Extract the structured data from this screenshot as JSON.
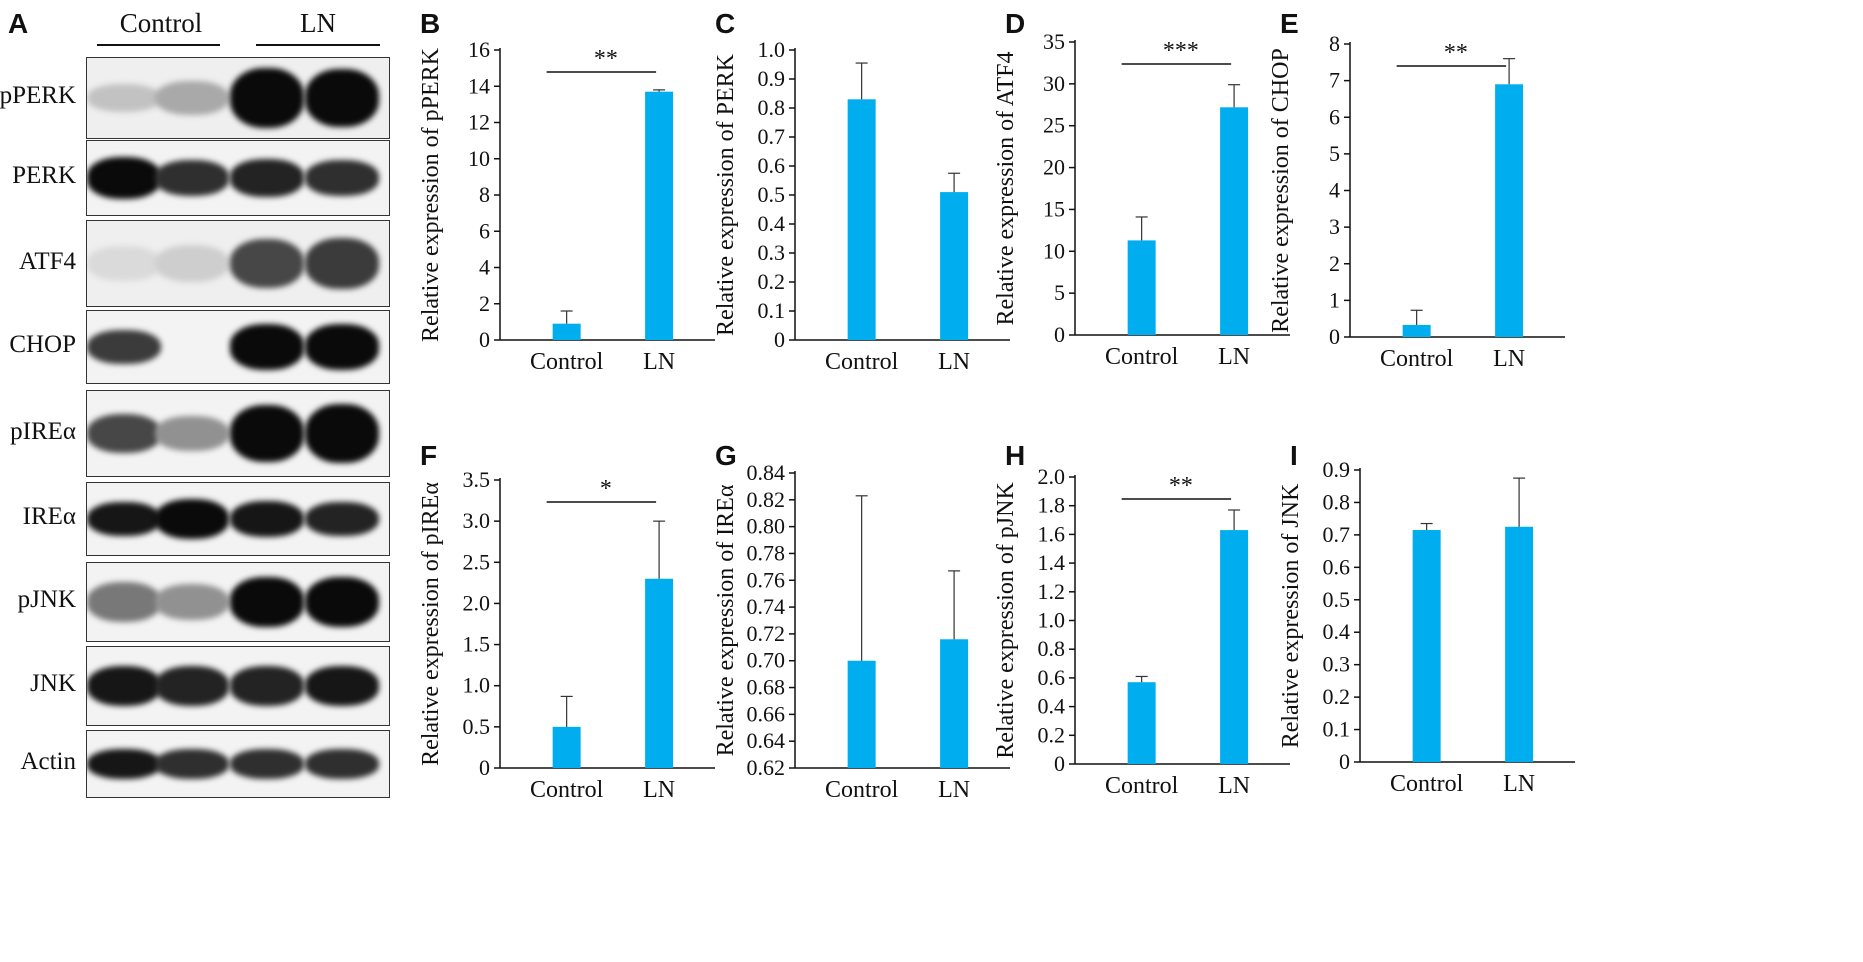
{
  "panel_a": {
    "letter": "A",
    "conditions": [
      "Control",
      "LN"
    ],
    "rows": [
      "pPERK",
      "PERK",
      "ATF4",
      "CHOP",
      "pIREα",
      "IREα",
      "pJNK",
      "JNK",
      "Actin"
    ]
  },
  "colors": {
    "bar": "#00AEEF",
    "axis": "#111111"
  },
  "chart_data": [
    {
      "letter": "B",
      "type": "bar",
      "categories": [
        "Control",
        "LN"
      ],
      "values": [
        0.9,
        13.7
      ],
      "errors": [
        0.7,
        0.1
      ],
      "ylabel": "Relative expression of pPERK",
      "ylim": [
        0,
        16
      ],
      "ticks": [
        "0",
        "2",
        "4",
        "6",
        "8",
        "10",
        "12",
        "14",
        "16"
      ],
      "significance": "**"
    },
    {
      "letter": "C",
      "type": "bar",
      "categories": [
        "Control",
        "LN"
      ],
      "values": [
        0.83,
        0.51
      ],
      "errors": [
        0.125,
        0.065
      ],
      "ylabel": "Relative expression of PERK",
      "ylim": [
        0,
        1.0
      ],
      "ticks": [
        "0",
        "0.1",
        "0.2",
        "0.3",
        "0.4",
        "0.5",
        "0.6",
        "0.7",
        "0.8",
        "0.9",
        "1.0"
      ],
      "significance": ""
    },
    {
      "letter": "D",
      "type": "bar",
      "categories": [
        "Control",
        "LN"
      ],
      "values": [
        11.3,
        27.2
      ],
      "errors": [
        2.8,
        2.7
      ],
      "ylabel": "Relative expression of ATF4",
      "ylim": [
        0,
        35
      ],
      "ticks": [
        "0",
        "5",
        "10",
        "15",
        "20",
        "25",
        "30",
        "35"
      ],
      "significance": "***"
    },
    {
      "letter": "E",
      "type": "bar",
      "categories": [
        "Control",
        "LN"
      ],
      "values": [
        0.33,
        6.9
      ],
      "errors": [
        0.4,
        0.7
      ],
      "ylabel": "Relative expression of CHOP",
      "ylim": [
        0,
        8
      ],
      "ticks": [
        "0",
        "1",
        "2",
        "3",
        "4",
        "5",
        "6",
        "7",
        "8"
      ],
      "significance": "**"
    },
    {
      "letter": "F",
      "type": "bar",
      "categories": [
        "Control",
        "LN"
      ],
      "values": [
        0.5,
        2.3
      ],
      "errors": [
        0.37,
        0.7
      ],
      "ylabel": "Relative expression of pIREα",
      "ylim": [
        0,
        3.5
      ],
      "ticks": [
        "0",
        "0.5",
        "1.0",
        "1.5",
        "2.0",
        "2.5",
        "3.0",
        "3.5"
      ],
      "significance": "*"
    },
    {
      "letter": "G",
      "type": "bar",
      "categories": [
        "Control",
        "LN"
      ],
      "values": [
        0.7,
        0.716
      ],
      "errors": [
        0.123,
        0.051
      ],
      "ylabel": "Relative expression of IREα",
      "ylim": [
        0.62,
        0.84
      ],
      "ticks": [
        "0.62",
        "0.64",
        "0.66",
        "0.68",
        "0.70",
        "0.72",
        "0.74",
        "0.76",
        "0.78",
        "0.80",
        "0.82",
        "0.84"
      ],
      "significance": ""
    },
    {
      "letter": "H",
      "type": "bar",
      "categories": [
        "Control",
        "LN"
      ],
      "values": [
        0.57,
        1.63
      ],
      "errors": [
        0.04,
        0.14
      ],
      "ylabel": "Relative expression of pJNK",
      "ylim": [
        0,
        2.0
      ],
      "ticks": [
        "0",
        "0.2",
        "0.4",
        "0.6",
        "0.8",
        "1.0",
        "1.2",
        "1.4",
        "1.6",
        "1.8",
        "2.0"
      ],
      "significance": "**"
    },
    {
      "letter": "I",
      "type": "bar",
      "categories": [
        "Control",
        "LN"
      ],
      "values": [
        0.715,
        0.725
      ],
      "errors": [
        0.02,
        0.15
      ],
      "ylabel": "Relative expression of JNK",
      "ylim": [
        0,
        0.9
      ],
      "ticks": [
        "0",
        "0.1",
        "0.2",
        "0.3",
        "0.4",
        "0.5",
        "0.6",
        "0.7",
        "0.8",
        "0.9"
      ],
      "significance": ""
    }
  ]
}
